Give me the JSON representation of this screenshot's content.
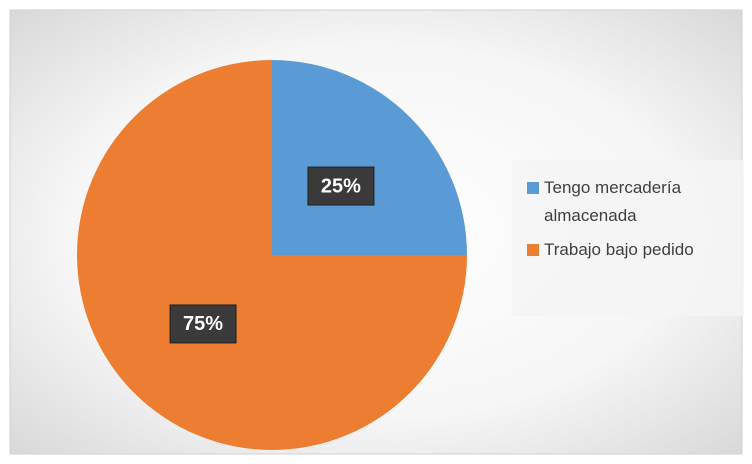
{
  "chart_data": {
    "type": "pie",
    "categories": [
      "Tengo mercadería almacenada",
      "Trabajo bajo pedido"
    ],
    "values": [
      25,
      75
    ],
    "value_labels": [
      "25%",
      "75%"
    ],
    "colors": [
      "#5b9bd5",
      "#ed7d31"
    ],
    "legend": "right"
  }
}
